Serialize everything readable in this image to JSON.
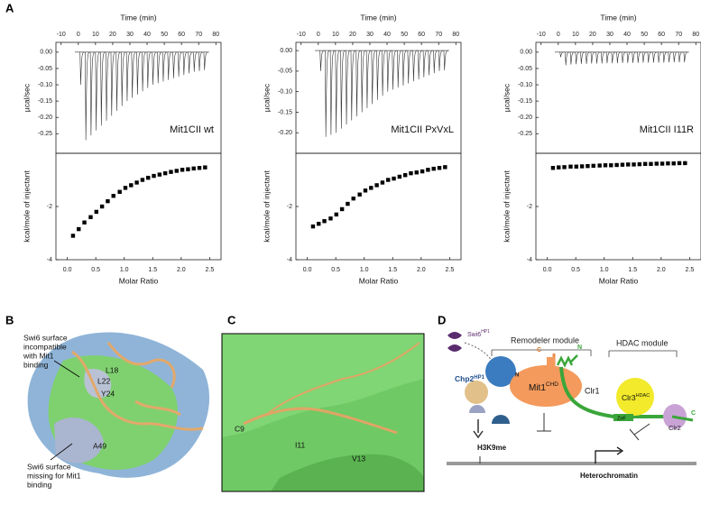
{
  "panel_labels": [
    "A",
    "B",
    "C",
    "D"
  ],
  "chart_data": [
    {
      "type": "spike",
      "xlabel": "Time (min)",
      "ylabel": "µcal/sec",
      "annotation": "Mit1CII wt",
      "xlim": [
        -13,
        83
      ],
      "xticks": [
        -10,
        0,
        10,
        20,
        30,
        40,
        50,
        60,
        70,
        80
      ],
      "ylim": [
        -0.31,
        0.03
      ],
      "yticks": [
        {
          "value": 0,
          "label": "0.00"
        },
        -0.05,
        {
          "value": -0.1,
          "label": "-0.10"
        },
        -0.15,
        {
          "value": -0.2,
          "label": "-0.20"
        },
        -0.25
      ],
      "x": [
        1,
        4,
        7,
        10,
        13,
        16,
        19,
        22,
        25,
        28,
        31,
        34,
        37,
        40,
        43,
        46,
        49,
        52,
        55,
        58,
        61,
        64,
        67,
        70,
        73
      ],
      "values": [
        -0.1,
        -0.27,
        -0.255,
        -0.24,
        -0.225,
        -0.21,
        -0.195,
        -0.18,
        -0.165,
        -0.15,
        -0.14,
        -0.13,
        -0.12,
        -0.11,
        -0.1,
        -0.095,
        -0.09,
        -0.085,
        -0.08,
        -0.075,
        -0.07,
        -0.065,
        -0.06,
        -0.058,
        -0.055
      ],
      "color": "#333333"
    },
    {
      "type": "scatter",
      "xlabel": "Molar Ratio",
      "ylabel": "kcal/mole of injectant",
      "xlim": [
        -0.2,
        2.7
      ],
      "xticks": [
        {
          "value": 0,
          "label": "0.0"
        },
        0.5,
        {
          "value": 1,
          "label": "1.0"
        },
        1.5,
        {
          "value": 2,
          "label": "2.0"
        },
        2.5
      ],
      "ylim": [
        -4,
        0
      ],
      "yticks": [
        -4,
        -2
      ],
      "x": [
        0.1,
        0.2,
        0.3,
        0.41,
        0.51,
        0.61,
        0.71,
        0.81,
        0.92,
        1.02,
        1.12,
        1.22,
        1.32,
        1.42,
        1.52,
        1.62,
        1.72,
        1.82,
        1.92,
        2.02,
        2.12,
        2.22,
        2.32,
        2.42
      ],
      "values": [
        -3.1,
        -2.85,
        -2.6,
        -2.4,
        -2.2,
        -2.0,
        -1.8,
        -1.6,
        -1.45,
        -1.3,
        -1.2,
        -1.1,
        -1.0,
        -0.92,
        -0.85,
        -0.8,
        -0.75,
        -0.7,
        -0.66,
        -0.62,
        -0.6,
        -0.57,
        -0.55,
        -0.53
      ],
      "color": "#000000"
    },
    {
      "type": "spike",
      "xlabel": "Time (min)",
      "ylabel": "µcal/sec",
      "annotation": "Mit1CII PxVxL",
      "xlim": [
        -13,
        83
      ],
      "xticks": [
        -10,
        0,
        10,
        20,
        30,
        40,
        50,
        60,
        70,
        80
      ],
      "ylim": [
        -0.25,
        0.02
      ],
      "yticks": [
        {
          "value": 0,
          "label": "0.00"
        },
        -0.05,
        {
          "value": -0.1,
          "label": "-0.10"
        },
        -0.15,
        {
          "value": -0.2,
          "label": "-0.20"
        }
      ],
      "x": [
        1,
        4,
        7,
        10,
        13,
        16,
        19,
        22,
        25,
        28,
        31,
        34,
        37,
        40,
        43,
        46,
        49,
        52,
        55,
        58,
        61,
        64,
        67,
        70,
        73
      ],
      "values": [
        -0.05,
        -0.21,
        -0.205,
        -0.2,
        -0.19,
        -0.18,
        -0.17,
        -0.16,
        -0.15,
        -0.14,
        -0.13,
        -0.12,
        -0.11,
        -0.1,
        -0.095,
        -0.09,
        -0.085,
        -0.08,
        -0.075,
        -0.07,
        -0.065,
        -0.06,
        -0.055,
        -0.05,
        -0.048
      ],
      "color": "#333333"
    },
    {
      "type": "scatter",
      "xlabel": "Molar Ratio",
      "ylabel": "kcal/mole of injectant",
      "xlim": [
        -0.2,
        2.7
      ],
      "xticks": [
        {
          "value": 0,
          "label": "0.0"
        },
        0.5,
        {
          "value": 1,
          "label": "1.0"
        },
        1.5,
        {
          "value": 2,
          "label": "2.0"
        },
        2.5
      ],
      "ylim": [
        -4,
        0
      ],
      "yticks": [
        -4,
        -2
      ],
      "x": [
        0.1,
        0.2,
        0.3,
        0.41,
        0.51,
        0.61,
        0.71,
        0.81,
        0.92,
        1.02,
        1.12,
        1.22,
        1.32,
        1.42,
        1.52,
        1.62,
        1.72,
        1.82,
        1.92,
        2.02,
        2.12,
        2.22,
        2.32,
        2.42
      ],
      "values": [
        -2.75,
        -2.65,
        -2.55,
        -2.45,
        -2.3,
        -2.1,
        -1.9,
        -1.7,
        -1.55,
        -1.4,
        -1.3,
        -1.2,
        -1.1,
        -1.0,
        -0.95,
        -0.88,
        -0.82,
        -0.75,
        -0.72,
        -0.68,
        -0.62,
        -0.58,
        -0.55,
        -0.52
      ],
      "color": "#000000"
    },
    {
      "type": "spike",
      "xlabel": "Time (min)",
      "ylabel": "µcal/sec",
      "annotation": "Mit1CII I11R",
      "xlim": [
        -13,
        83
      ],
      "xticks": [
        -10,
        0,
        10,
        20,
        30,
        40,
        50,
        60,
        70,
        80
      ],
      "ylim": [
        -0.31,
        0.03
      ],
      "yticks": [
        {
          "value": 0,
          "label": "0.00"
        },
        -0.05,
        {
          "value": -0.1,
          "label": "-0.10"
        },
        -0.15,
        {
          "value": -0.2,
          "label": "-0.20"
        },
        -0.25
      ],
      "x": [
        1,
        4,
        7,
        10,
        13,
        16,
        19,
        22,
        25,
        28,
        31,
        34,
        37,
        40,
        43,
        46,
        49,
        52,
        55,
        58,
        61,
        64,
        67,
        70,
        73
      ],
      "values": [
        -0.015,
        -0.04,
        -0.038,
        -0.037,
        -0.036,
        -0.036,
        -0.035,
        -0.035,
        -0.035,
        -0.034,
        -0.034,
        -0.034,
        -0.033,
        -0.033,
        -0.033,
        -0.033,
        -0.032,
        -0.032,
        -0.032,
        -0.032,
        -0.032,
        -0.031,
        -0.031,
        -0.031,
        -0.031
      ],
      "color": "#333333"
    },
    {
      "type": "scatter",
      "xlabel": "Molar Ratio",
      "ylabel": "kcal/mole of injectant",
      "xlim": [
        -0.2,
        2.7
      ],
      "xticks": [
        {
          "value": 0,
          "label": "0.0"
        },
        0.5,
        {
          "value": 1,
          "label": "1.0"
        },
        1.5,
        {
          "value": 2,
          "label": "2.0"
        },
        2.5
      ],
      "ylim": [
        -4,
        0
      ],
      "yticks": [
        -4,
        -2
      ],
      "x": [
        0.1,
        0.2,
        0.3,
        0.41,
        0.51,
        0.61,
        0.71,
        0.81,
        0.92,
        1.02,
        1.12,
        1.22,
        1.32,
        1.42,
        1.52,
        1.62,
        1.72,
        1.82,
        1.92,
        2.02,
        2.12,
        2.22,
        2.32,
        2.42
      ],
      "values": [
        -0.55,
        -0.53,
        -0.52,
        -0.5,
        -0.5,
        -0.49,
        -0.48,
        -0.47,
        -0.46,
        -0.45,
        -0.45,
        -0.44,
        -0.43,
        -0.42,
        -0.42,
        -0.41,
        -0.4,
        -0.4,
        -0.39,
        -0.39,
        -0.38,
        -0.38,
        -0.37,
        -0.37
      ],
      "color": "#000000"
    }
  ],
  "panel_b": {
    "note_top": [
      "Swi6 surface",
      "incompatible",
      "with Mit1",
      "binding"
    ],
    "residues": [
      "L18",
      "L22",
      "Y24",
      "A49"
    ],
    "note_bottom": [
      "Swi6 surface",
      "missing for Mit1",
      "binding"
    ]
  },
  "panel_c": {
    "residues": [
      "C9",
      "I11",
      "V13"
    ]
  },
  "panel_d": {
    "swi6": {
      "text": "Swi6",
      "sup": "HP1"
    },
    "remodeler": "Remodeler module",
    "chp2": {
      "text": "Chp2",
      "sup": "HP1"
    },
    "mit1": {
      "text": "Mit1",
      "sup": "CHD"
    },
    "clr1": "Clr1",
    "hdac": "HDAC module",
    "clr3": {
      "text": "Clr3",
      "sup": "HDAC"
    },
    "znf": "ZnF",
    "clr2": "Clr2",
    "c_orange": "C",
    "n_green": "N",
    "c_green": "C",
    "n_small": "N",
    "h3k9me": "H3K9me",
    "heterochromatin": "Heterochromatin"
  }
}
